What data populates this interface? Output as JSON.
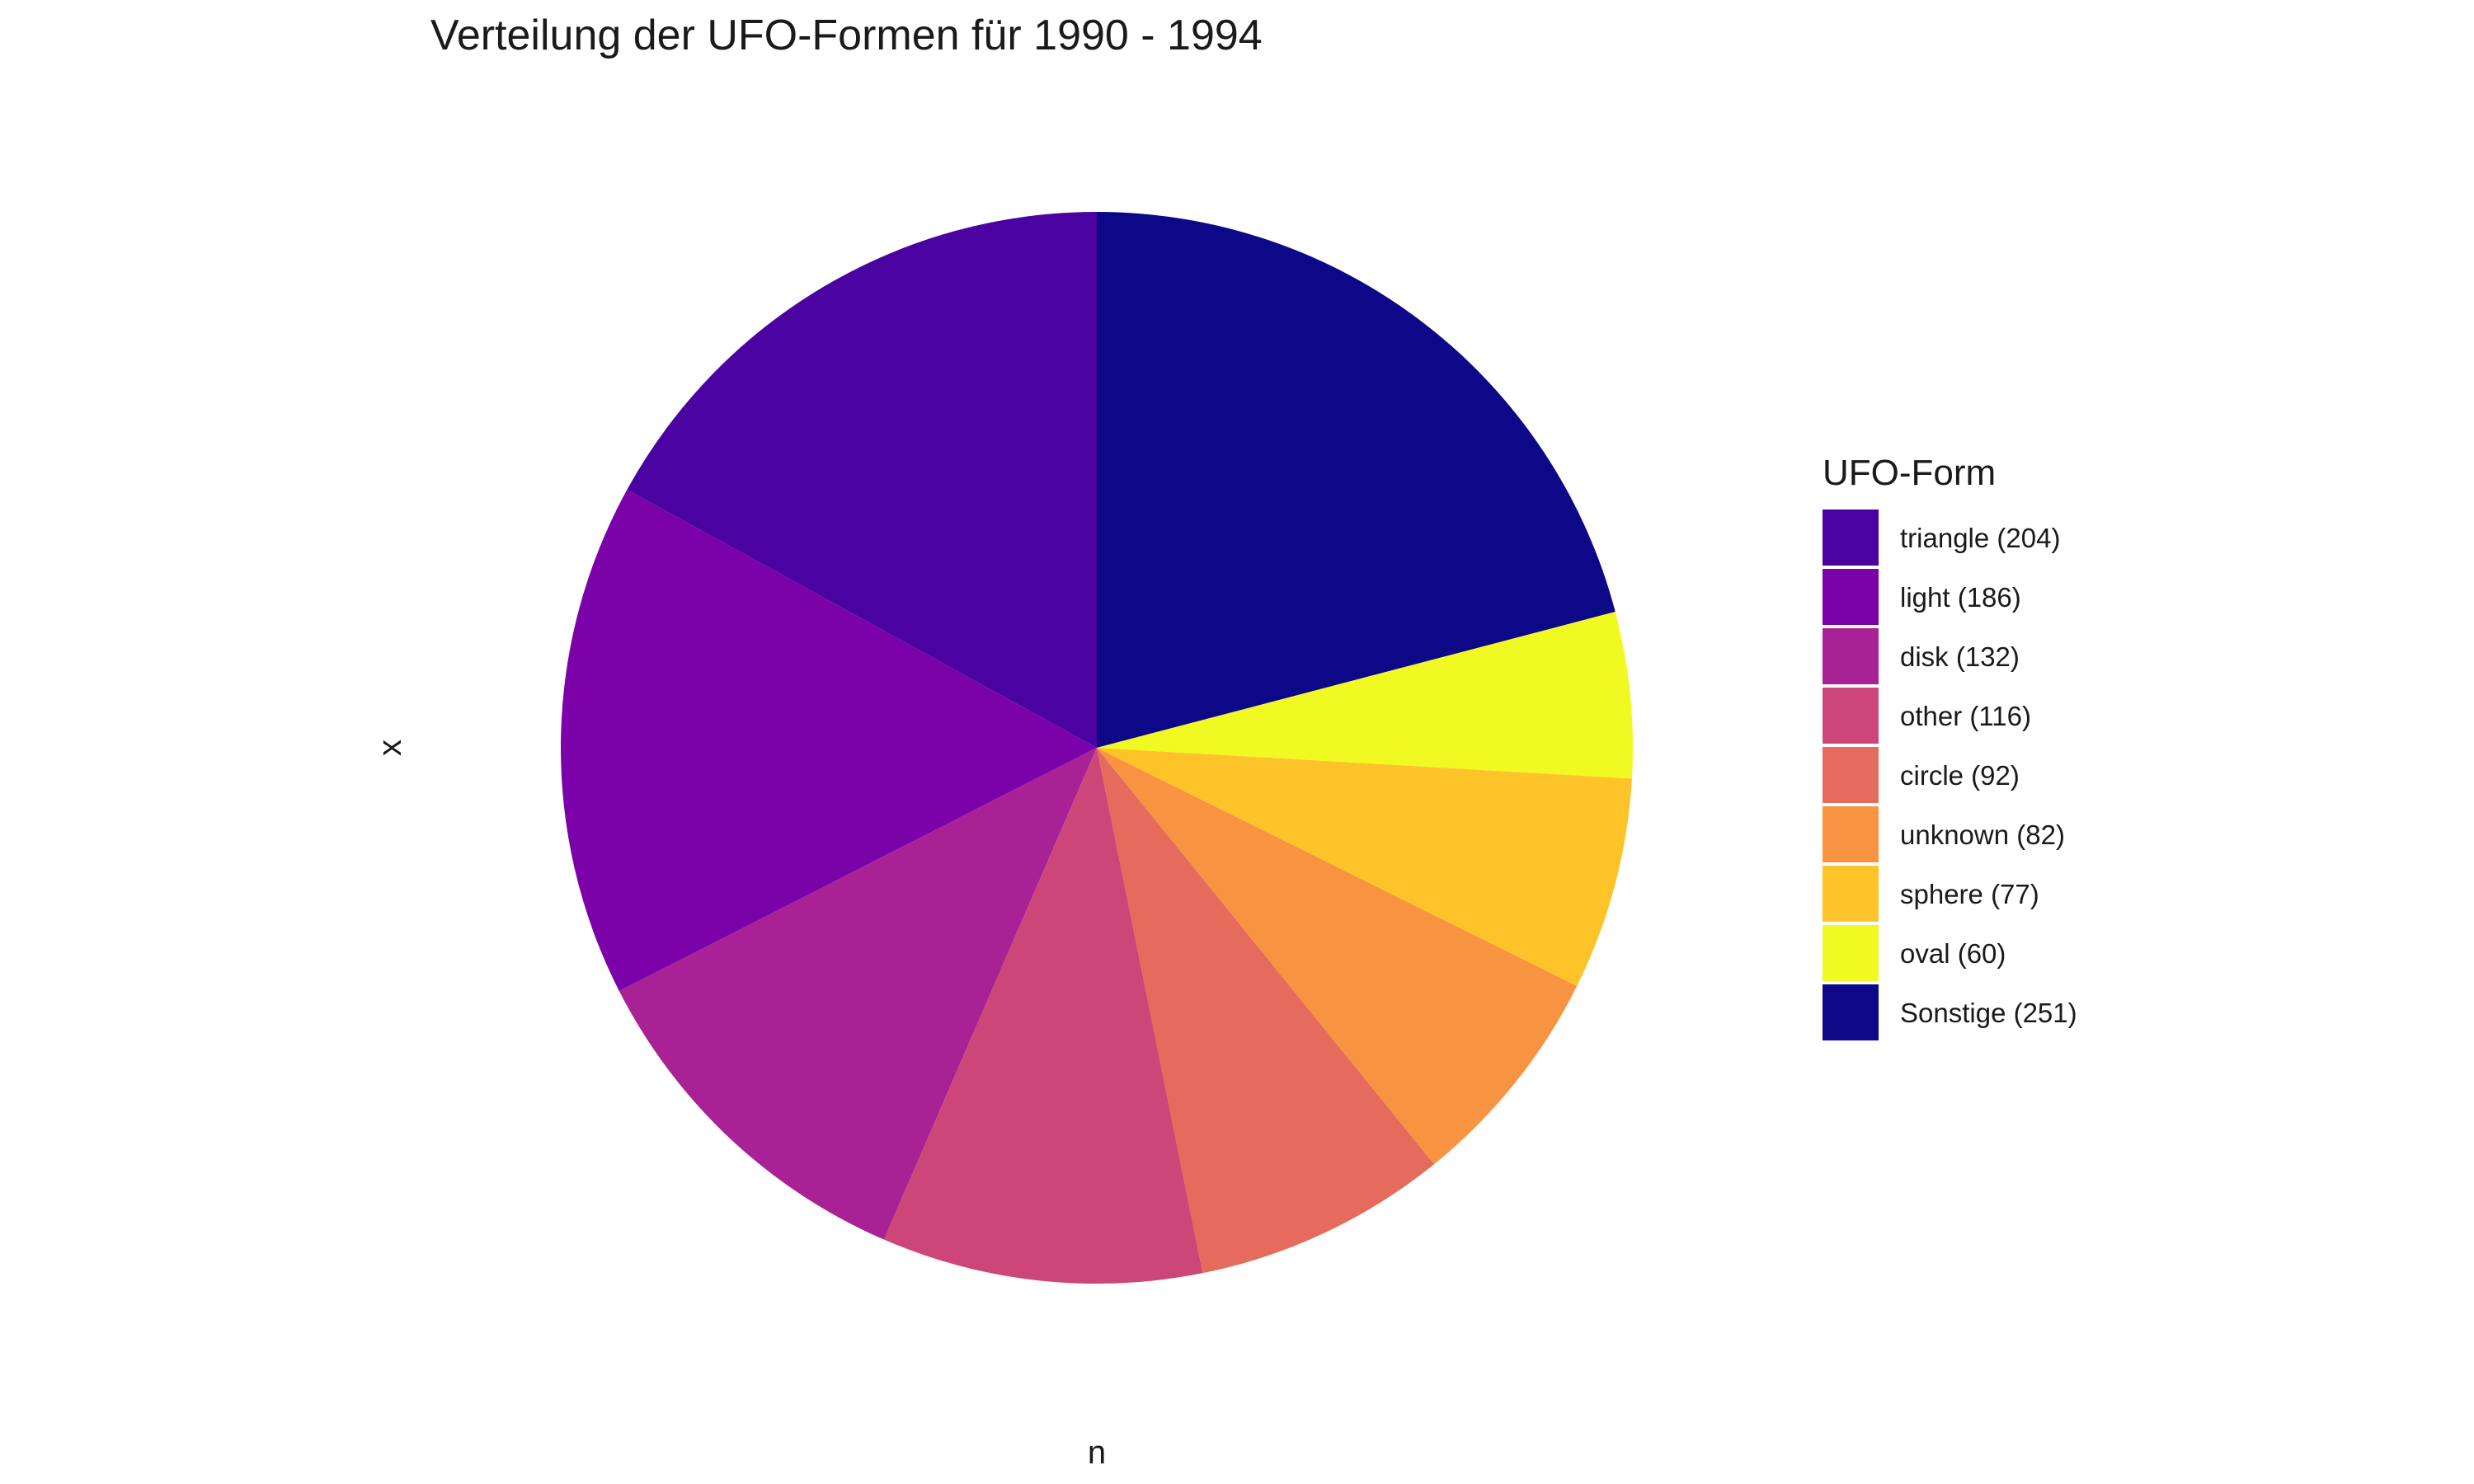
{
  "chart_data": {
    "type": "pie",
    "title": "Verteilung der UFO-Formen für 1990 - 1994",
    "xlabel": "n",
    "ylabel": "x",
    "legend": {
      "title": "UFO-Form",
      "position": "right"
    },
    "slices": [
      {
        "label": "triangle (204)",
        "value": 204,
        "color": "#4a02a0"
      },
      {
        "label": "light (186)",
        "value": 186,
        "color": "#7b02a8"
      },
      {
        "label": "disk (132)",
        "value": 132,
        "color": "#a82296"
      },
      {
        "label": "other (116)",
        "value": 116,
        "color": "#cc4778"
      },
      {
        "label": "circle (92)",
        "value": 92,
        "color": "#e56b5d"
      },
      {
        "label": "unknown (82)",
        "value": 82,
        "color": "#f89441"
      },
      {
        "label": "sphere (77)",
        "value": 77,
        "color": "#fdc328"
      },
      {
        "label": "oval (60)",
        "value": 60,
        "color": "#f0f921"
      },
      {
        "label": "Sonstige (251)",
        "value": 251,
        "color": "#0d0887"
      }
    ]
  }
}
